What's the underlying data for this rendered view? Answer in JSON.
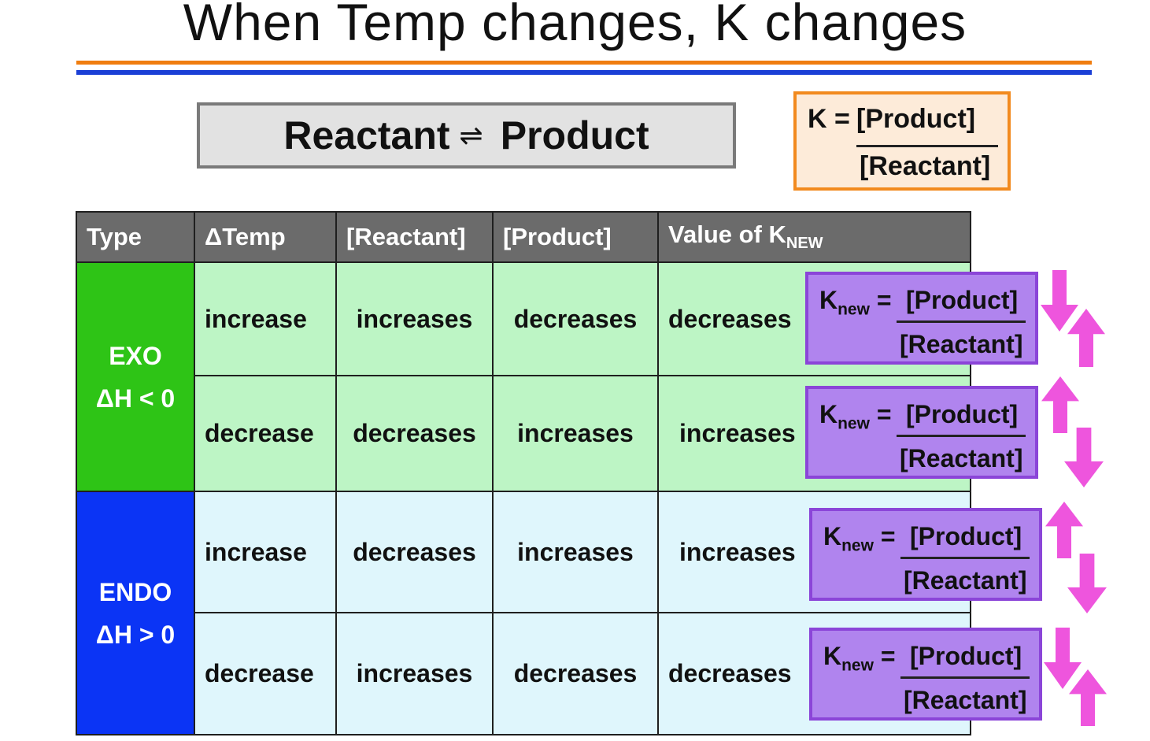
{
  "title": "When Temp changes, K changes",
  "reaction": {
    "reactant": "Reactant",
    "arrow": "⇌",
    "product": "Product"
  },
  "k_expression": {
    "lhs": "K =",
    "numerator": "[Product]",
    "denominator": "[Reactant]"
  },
  "table": {
    "headers": {
      "type": "Type",
      "dtemp": "ΔTemp",
      "reactant": "[Reactant]",
      "product": "[Product]",
      "k_value": "Value of K",
      "k_sub": "NEW"
    },
    "groups": [
      {
        "name": "EXO",
        "dh": "ΔH < 0",
        "color": "#2ec416"
      },
      {
        "name": "ENDO",
        "dh": "ΔH > 0",
        "color": "#0b34f5"
      }
    ],
    "rows": [
      {
        "dtemp": "increase",
        "reactant": "increases",
        "product": "decreases",
        "k": "decreases"
      },
      {
        "dtemp": "decrease",
        "reactant": "decreases",
        "product": "increases",
        "k": "increases"
      },
      {
        "dtemp": "increase",
        "reactant": "decreases",
        "product": "increases",
        "k": "increases"
      },
      {
        "dtemp": "decrease",
        "reactant": "increases",
        "product": "decreases",
        "k": "decreases"
      }
    ]
  },
  "knew": {
    "k": "K",
    "sub": "new",
    "eq": "=",
    "numerator": "[Product]",
    "denominator": "[Reactant]"
  },
  "arrow_directions": [
    {
      "numerator": "down",
      "denominator": "up"
    },
    {
      "numerator": "up",
      "denominator": "down"
    },
    {
      "numerator": "up",
      "denominator": "down"
    },
    {
      "numerator": "down",
      "denominator": "up"
    }
  ],
  "colors": {
    "arrow": "#ee55dd",
    "accent_orange": "#f07d0f",
    "accent_blue": "#1a3fd6"
  }
}
